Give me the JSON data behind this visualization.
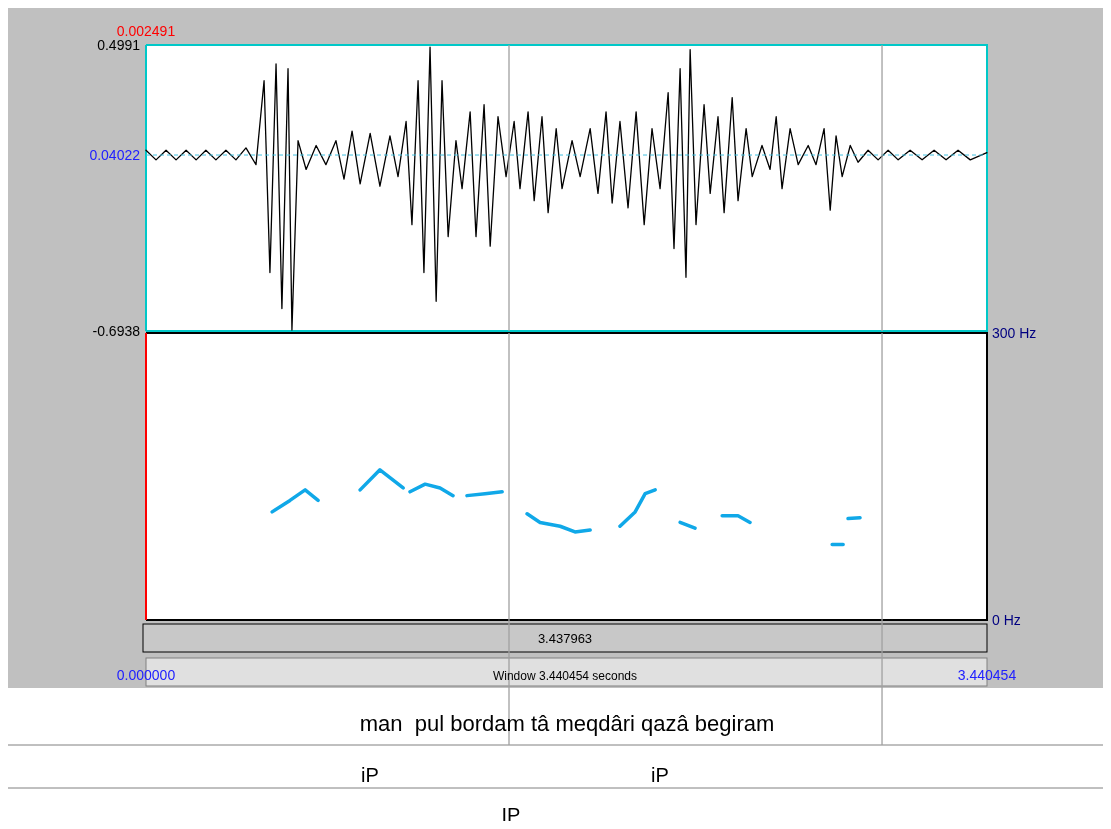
{
  "chart_data": [
    {
      "type": "line",
      "xlim": [
        0,
        3.440454
      ],
      "ylim": [
        -0.6938,
        0.4991
      ],
      "yticks": [
        0.4991,
        -0.6938
      ],
      "tick_labels": "y",
      "x": [
        0,
        0.041,
        0.082,
        0.123,
        0.164,
        0.205,
        0.245,
        0.286,
        0.327,
        0.368,
        0.409,
        0.45,
        0.483,
        0.507,
        0.532,
        0.556,
        0.581,
        0.597,
        0.622,
        0.655,
        0.696,
        0.736,
        0.777,
        0.81,
        0.843,
        0.876,
        0.917,
        0.957,
        0.998,
        1.031,
        1.064,
        1.088,
        1.113,
        1.137,
        1.162,
        1.187,
        1.211,
        1.236,
        1.268,
        1.293,
        1.326,
        1.35,
        1.383,
        1.408,
        1.44,
        1.473,
        1.506,
        1.53,
        1.563,
        1.588,
        1.62,
        1.645,
        1.678,
        1.702,
        1.743,
        1.776,
        1.817,
        1.849,
        1.882,
        1.907,
        1.939,
        1.972,
        2.005,
        2.038,
        2.07,
        2.103,
        2.136,
        2.16,
        2.185,
        2.209,
        2.226,
        2.25,
        2.283,
        2.308,
        2.34,
        2.365,
        2.398,
        2.422,
        2.455,
        2.48,
        2.52,
        2.553,
        2.578,
        2.602,
        2.635,
        2.668,
        2.709,
        2.741,
        2.774,
        2.799,
        2.823,
        2.848,
        2.881,
        2.913,
        2.954,
        2.995,
        3.036,
        3.077,
        3.126,
        3.175,
        3.224,
        3.273,
        3.322,
        3.372,
        3.44
      ],
      "series": [
        {
          "color": "#000000",
          "values": [
            0.06,
            0.02,
            0.06,
            0.02,
            0.06,
            0.02,
            0.06,
            0.02,
            0.06,
            0.02,
            0.07,
            0.0,
            0.35,
            -0.45,
            0.42,
            -0.6,
            0.4,
            -0.69,
            0.1,
            -0.02,
            0.08,
            0.0,
            0.1,
            -0.06,
            0.14,
            -0.08,
            0.13,
            -0.09,
            0.12,
            -0.05,
            0.18,
            -0.25,
            0.35,
            -0.45,
            0.49,
            -0.57,
            0.35,
            -0.3,
            0.1,
            -0.1,
            0.22,
            -0.3,
            0.25,
            -0.34,
            0.2,
            -0.05,
            0.18,
            -0.1,
            0.22,
            -0.15,
            0.2,
            -0.2,
            0.15,
            -0.1,
            0.1,
            -0.05,
            0.15,
            -0.12,
            0.22,
            -0.16,
            0.18,
            -0.18,
            0.22,
            -0.25,
            0.15,
            -0.1,
            0.3,
            -0.35,
            0.4,
            -0.47,
            0.48,
            -0.25,
            0.25,
            -0.12,
            0.2,
            -0.2,
            0.28,
            -0.15,
            0.15,
            -0.05,
            0.08,
            -0.02,
            0.2,
            -0.1,
            0.15,
            0.0,
            0.08,
            0.0,
            0.15,
            -0.19,
            0.12,
            -0.05,
            0.08,
            0.01,
            0.06,
            0.02,
            0.06,
            0.02,
            0.06,
            0.02,
            0.06,
            0.02,
            0.06,
            0.02,
            0.05
          ]
        }
      ],
      "ref_lines": [
        {
          "axis": "y",
          "value": 0.04022,
          "label": "0.04022",
          "color": "#40c0e0",
          "line_style": "dashed"
        },
        {
          "axis": "x",
          "value": 1.485,
          "color": "#a0a0a0"
        },
        {
          "axis": "x",
          "value": 3.011,
          "color": "#a0a0a0"
        }
      ],
      "annotations": [
        "0.002491"
      ]
    },
    {
      "type": "line",
      "xlim": [
        0,
        3.440454
      ],
      "ylim": [
        0,
        300
      ],
      "yticks": [
        {
          "value": 300,
          "label": "300 Hz"
        },
        {
          "value": 0,
          "label": "0 Hz"
        }
      ],
      "xticks": [
        {
          "value": 0,
          "label": "0.000000"
        },
        {
          "value": 3.440454,
          "label": "3.440454"
        }
      ],
      "x": [
        0.516,
        0.589,
        0.651,
        0.704,
        0.79,
        0.876,
        0.957,
        1.052,
        1.066,
        1.08,
        1.142,
        1.203,
        1.256,
        1.285,
        1.313,
        1.387,
        1.457,
        1.508,
        1.559,
        1.612,
        1.694,
        1.755,
        1.817,
        1.878,
        1.939,
        2.001,
        2.042,
        2.083,
        2.134,
        2.185,
        2.246,
        2.3,
        2.357,
        2.422,
        2.471,
        2.64,
        2.807,
        2.852,
        2.862,
        2.872,
        2.921
      ],
      "series": [
        {
          "color": "#10a8e8",
          "values": [
            113,
            125,
            136,
            125,
            null,
            136,
            157,
            138,
            null,
            134,
            142,
            138,
            130,
            null,
            130,
            132,
            134,
            null,
            111,
            102,
            98,
            92,
            94,
            null,
            98,
            113,
            132,
            136,
            null,
            102,
            96,
            null,
            109,
            109,
            102,
            null,
            79,
            79,
            null,
            106,
            107
          ]
        }
      ],
      "ref_lines": [
        {
          "axis": "x",
          "value": 1.485,
          "color": "#a0a0a0"
        },
        {
          "axis": "x",
          "value": 3.011,
          "color": "#a0a0a0"
        }
      ],
      "annotations": [
        "3.437963",
        "Window 3.440454 seconds",
        "man  pul bordam tâ meqdâri qazâ begiram",
        "iP",
        "iP",
        "IP"
      ]
    }
  ]
}
